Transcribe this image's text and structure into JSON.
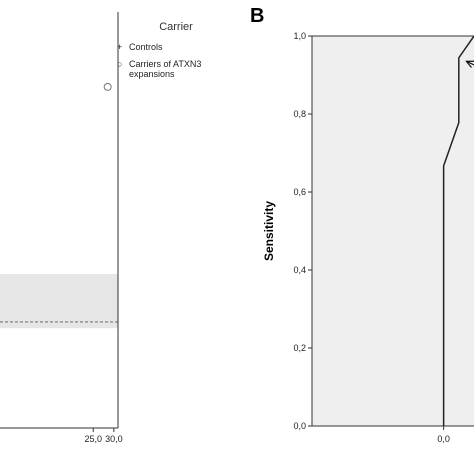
{
  "chart_data": [
    {
      "type": "scatter",
      "panel_label": "",
      "xlim": [
        0,
        31
      ],
      "x_ticks": [
        25.0,
        30.0
      ],
      "x_tick_labels": [
        "25,0",
        "30,0"
      ],
      "legend": {
        "title": "Carrier",
        "placement": "right",
        "entries": [
          {
            "marker": "+",
            "label_lines": [
              "Controls"
            ]
          },
          {
            "marker": "○",
            "label_lines": [
              "Carriers of ATXN3",
              "expansions"
            ]
          }
        ]
      },
      "series": [
        {
          "label_ref": 1,
          "points": [
            {
              "x": 28.5,
              "y_frac": 0.82
            }
          ]
        }
      ],
      "reference_band": {
        "y_frac_low": 0.24,
        "y_frac_high": 0.37,
        "color": "#e6e6e6"
      },
      "reference_line": {
        "y_frac": 0.255,
        "style": "dashed"
      }
    },
    {
      "type": "line",
      "panel_label": "B",
      "ylabel": "Sensitivity",
      "ylim": [
        0,
        1
      ],
      "y_ticks": [
        0,
        0.2,
        0.4,
        0.6,
        0.8,
        1.0
      ],
      "y_tick_labels": [
        "0,0",
        "0,2",
        "0,4",
        "0,6",
        "0,8",
        "1,0"
      ],
      "xlim": [
        -0.26,
        0.06
      ],
      "x_ticks": [
        0.0
      ],
      "x_tick_labels": [
        "0,0"
      ],
      "background": "#efefef",
      "series": [
        {
          "x": [
            0.0,
            0.0,
            0.03,
            0.03,
            0.06
          ],
          "y": [
            0.0,
            0.667,
            0.778,
            0.944,
            1.0
          ]
        }
      ],
      "annotation": {
        "type": "arrow",
        "from": [
          0.12,
          0.89
        ],
        "to": [
          0.045,
          0.935
        ]
      }
    }
  ]
}
